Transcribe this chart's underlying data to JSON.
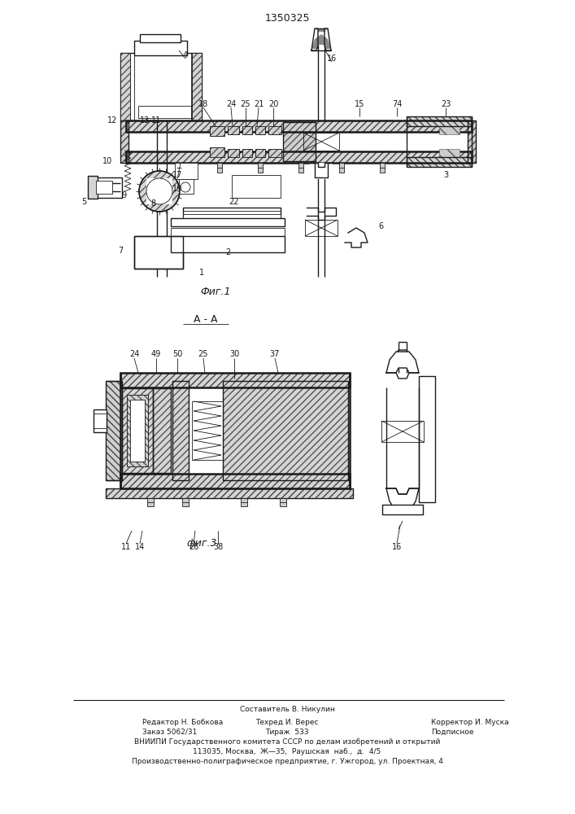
{
  "patent_number": "1350325",
  "fig1_label": "Фиг.1",
  "fig3_label": "фиг.3",
  "section_label": "А - А",
  "footer_line1": "Составитель В. Никулин",
  "footer_line2_left": "Редактор Н. Бобкова",
  "footer_line2_mid": "Техред И. Верес",
  "footer_line2_right": "Корректор И. Муска",
  "footer_line3_left": "Заказ 5062/31",
  "footer_line3_mid": "Тираж  533",
  "footer_line3_right": "Подписное",
  "footer_line4": "ВНИИПИ Государственного комитета СССР по делам изобретений и открытий",
  "footer_line5": "113035, Москва,  Ж—35,  Раушская  наб.,  д.  4/5",
  "footer_line6": "Производственно-полиграфическое предприятие, г. Ужгород, ул. Проектная, 4",
  "bg_color": "#ffffff",
  "line_color": "#1a1a1a"
}
